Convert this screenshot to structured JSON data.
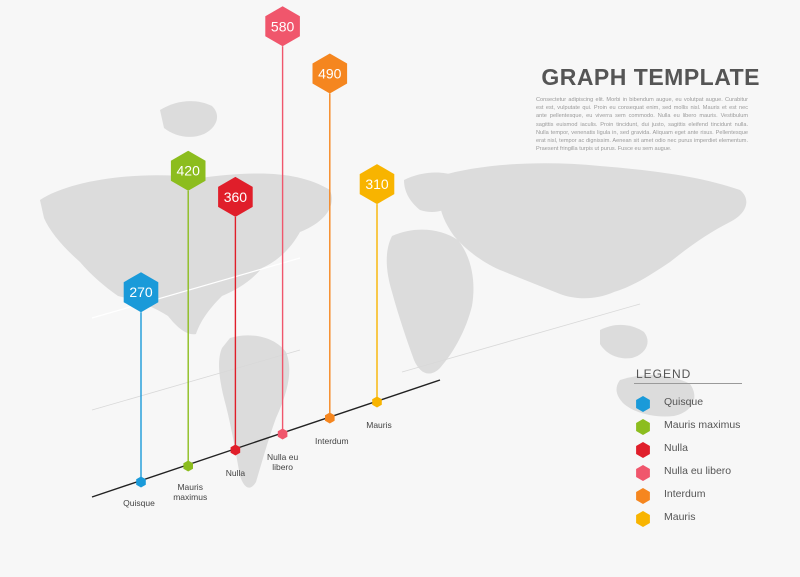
{
  "header": {
    "title": "GRAPH TEMPLATE",
    "description": "Consectetur adipiscing elit. Morbi in bibendum augue, eu volutpat augue. Curabitur est est, vulputate qui. Proin eu consequat enim, sed mollis nisl. Mauris et est nec ante pellentesque, eu viverra sem commodo. Nulla eu libero mauris. Vestibulum sagittis euismod iaculis. Proin tincidunt, dui justo, sagittis eleifend tincidunt nulla. Nulla tempor, venenatis ligula in, sed gravida. Aliquam eget ante risus. Pellentesque erat nisl, tempor ac dignissim. Aenean sit amet odio nec purus imperdiet elementum. Praesent fringilla turpis ut purus. Fusce eu sem augue."
  },
  "legend": {
    "title": "LEGEND"
  },
  "colors": {
    "Quisque": "#1a9ad9",
    "Mauris maximus": "#8cbd1e",
    "Nulla": "#e01e2a",
    "Nulla eu libero": "#f0566c",
    "Interdum": "#f5861f",
    "Mauris": "#f8b400"
  },
  "chart_data": {
    "type": "bar",
    "title": "GRAPH TEMPLATE",
    "categories": [
      "Quisque",
      "Mauris maximus",
      "Nulla",
      "Nulla eu libero",
      "Interdum",
      "Mauris"
    ],
    "values": [
      270,
      420,
      360,
      580,
      490,
      310
    ],
    "legend_position": "bottom-right",
    "grid": false
  }
}
